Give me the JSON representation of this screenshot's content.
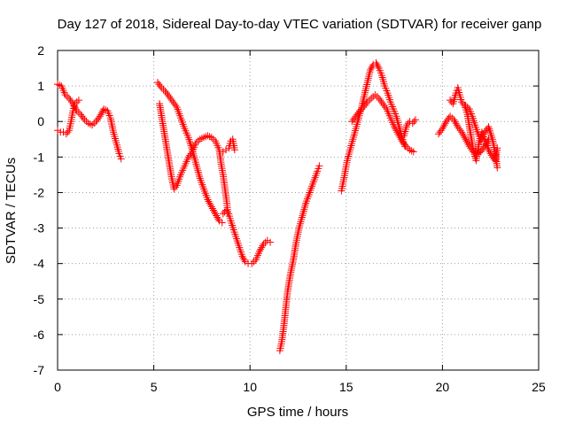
{
  "chart_data": {
    "type": "scatter",
    "title": "Day 127 of 2018, Sidereal Day-to-day VTEC variation (SDTVAR) for receiver ganp",
    "xlabel": "GPS time / hours",
    "ylabel": "SDTVAR / TECUs",
    "xlim": [
      0,
      25
    ],
    "ylim": [
      -7,
      2
    ],
    "xticks": [
      0,
      5,
      10,
      15,
      20,
      25
    ],
    "yticks": [
      -7,
      -6,
      -5,
      -4,
      -3,
      -2,
      -1,
      0,
      1,
      2
    ],
    "grid": true,
    "marker": "+",
    "color": "#ff0000",
    "segments": [
      [
        [
          0.0,
          1.05
        ],
        [
          0.2,
          1.0
        ],
        [
          0.4,
          0.75
        ],
        [
          0.6,
          0.65
        ],
        [
          0.8,
          0.5
        ],
        [
          1.0,
          0.3
        ],
        [
          1.2,
          0.2
        ],
        [
          1.4,
          0.05
        ],
        [
          1.6,
          -0.05
        ],
        [
          1.8,
          -0.1
        ],
        [
          2.0,
          0.0
        ],
        [
          2.2,
          0.15
        ],
        [
          2.4,
          0.35
        ],
        [
          2.6,
          0.3
        ],
        [
          2.75,
          0.1
        ],
        [
          2.9,
          -0.3
        ],
        [
          3.05,
          -0.6
        ],
        [
          3.2,
          -0.9
        ],
        [
          3.3,
          -1.05
        ]
      ],
      [
        [
          0.0,
          -0.25
        ],
        [
          0.15,
          -0.3
        ],
        [
          0.3,
          -0.3
        ],
        [
          0.45,
          -0.35
        ],
        [
          0.6,
          -0.25
        ],
        [
          0.7,
          0.0
        ],
        [
          0.8,
          0.3
        ],
        [
          0.9,
          0.5
        ],
        [
          1.0,
          0.55
        ],
        [
          1.1,
          0.6
        ]
      ],
      [
        [
          5.2,
          1.1
        ],
        [
          5.4,
          0.95
        ],
        [
          5.6,
          0.85
        ],
        [
          5.8,
          0.7
        ],
        [
          6.0,
          0.55
        ],
        [
          6.2,
          0.4
        ],
        [
          6.4,
          0.1
        ],
        [
          6.6,
          -0.2
        ],
        [
          6.8,
          -0.45
        ],
        [
          7.0,
          -0.8
        ],
        [
          7.2,
          -1.2
        ],
        [
          7.4,
          -1.6
        ],
        [
          7.6,
          -1.9
        ],
        [
          7.8,
          -2.2
        ],
        [
          8.0,
          -2.4
        ],
        [
          8.2,
          -2.6
        ],
        [
          8.4,
          -2.8
        ],
        [
          8.55,
          -2.85
        ]
      ],
      [
        [
          5.3,
          0.5
        ],
        [
          5.45,
          0.0
        ],
        [
          5.6,
          -0.5
        ],
        [
          5.75,
          -1.0
        ],
        [
          5.9,
          -1.5
        ],
        [
          6.05,
          -1.9
        ],
        [
          6.2,
          -1.8
        ],
        [
          6.4,
          -1.5
        ],
        [
          6.6,
          -1.25
        ],
        [
          6.8,
          -1.0
        ],
        [
          7.0,
          -0.85
        ],
        [
          7.2,
          -0.6
        ],
        [
          7.4,
          -0.5
        ],
        [
          7.6,
          -0.45
        ],
        [
          7.8,
          -0.4
        ],
        [
          8.0,
          -0.45
        ],
        [
          8.2,
          -0.55
        ],
        [
          8.4,
          -0.8
        ],
        [
          8.5,
          -1.2
        ],
        [
          8.6,
          -1.5
        ],
        [
          8.7,
          -1.9
        ],
        [
          8.8,
          -2.3
        ],
        [
          8.85,
          -2.6
        ]
      ],
      [
        [
          8.6,
          -2.6
        ],
        [
          8.75,
          -2.5
        ],
        [
          8.9,
          -2.6
        ],
        [
          9.0,
          -2.8
        ],
        [
          9.15,
          -3.05
        ],
        [
          9.3,
          -3.3
        ],
        [
          9.45,
          -3.55
        ],
        [
          9.6,
          -3.8
        ],
        [
          9.75,
          -3.95
        ],
        [
          9.9,
          -4.0
        ],
        [
          10.1,
          -4.0
        ],
        [
          10.3,
          -3.9
        ],
        [
          10.5,
          -3.65
        ],
        [
          10.7,
          -3.45
        ],
        [
          10.9,
          -3.35
        ],
        [
          11.05,
          -3.4
        ]
      ],
      [
        [
          8.6,
          -0.85
        ],
        [
          8.75,
          -0.8
        ],
        [
          8.9,
          -0.75
        ],
        [
          9.0,
          -0.55
        ],
        [
          9.1,
          -0.5
        ],
        [
          9.2,
          -0.8
        ]
      ],
      [
        [
          11.55,
          -6.45
        ],
        [
          11.65,
          -6.2
        ],
        [
          11.75,
          -5.8
        ],
        [
          11.85,
          -5.3
        ],
        [
          11.95,
          -4.8
        ],
        [
          12.1,
          -4.3
        ],
        [
          12.25,
          -3.9
        ],
        [
          12.4,
          -3.4
        ],
        [
          12.55,
          -3.0
        ],
        [
          12.7,
          -2.7
        ],
        [
          12.9,
          -2.3
        ],
        [
          13.1,
          -2.0
        ],
        [
          13.3,
          -1.7
        ],
        [
          13.5,
          -1.4
        ],
        [
          13.6,
          -1.25
        ]
      ],
      [
        [
          14.75,
          -1.95
        ],
        [
          14.85,
          -1.7
        ],
        [
          14.95,
          -1.4
        ],
        [
          15.05,
          -1.1
        ],
        [
          15.2,
          -0.8
        ],
        [
          15.35,
          -0.5
        ],
        [
          15.5,
          -0.2
        ],
        [
          15.65,
          0.1
        ],
        [
          15.8,
          0.4
        ],
        [
          15.95,
          0.75
        ],
        [
          16.1,
          1.1
        ],
        [
          16.25,
          1.45
        ],
        [
          16.4,
          1.6
        ],
        [
          16.55,
          1.65
        ],
        [
          16.7,
          1.5
        ],
        [
          16.85,
          1.3
        ],
        [
          17.0,
          1.0
        ],
        [
          17.15,
          0.8
        ],
        [
          17.3,
          0.55
        ],
        [
          17.45,
          0.35
        ],
        [
          17.6,
          0.15
        ],
        [
          17.75,
          -0.15
        ],
        [
          17.9,
          -0.45
        ],
        [
          18.05,
          -0.7
        ]
      ],
      [
        [
          15.3,
          0.0
        ],
        [
          15.5,
          0.15
        ],
        [
          15.7,
          0.3
        ],
        [
          15.9,
          0.4
        ],
        [
          16.1,
          0.55
        ],
        [
          16.3,
          0.65
        ],
        [
          16.5,
          0.75
        ],
        [
          16.7,
          0.65
        ],
        [
          16.9,
          0.5
        ],
        [
          17.1,
          0.35
        ],
        [
          17.3,
          0.1
        ],
        [
          17.5,
          -0.15
        ],
        [
          17.7,
          -0.35
        ],
        [
          17.9,
          -0.55
        ],
        [
          18.1,
          -0.7
        ],
        [
          18.3,
          -0.8
        ],
        [
          18.5,
          -0.85
        ]
      ],
      [
        [
          18.0,
          -0.4
        ],
        [
          18.15,
          -0.1
        ],
        [
          18.3,
          0.0
        ],
        [
          18.45,
          -0.05
        ],
        [
          18.6,
          0.05
        ]
      ],
      [
        [
          19.8,
          -0.35
        ],
        [
          20.0,
          -0.2
        ],
        [
          20.2,
          0.0
        ],
        [
          20.4,
          0.15
        ],
        [
          20.6,
          0.05
        ],
        [
          20.8,
          -0.15
        ],
        [
          21.0,
          -0.3
        ],
        [
          21.2,
          -0.5
        ],
        [
          21.4,
          -0.7
        ],
        [
          21.6,
          -0.85
        ],
        [
          21.8,
          -0.9
        ],
        [
          22.0,
          -0.85
        ],
        [
          22.2,
          -0.7
        ],
        [
          22.4,
          -0.5
        ]
      ],
      [
        [
          20.4,
          0.6
        ],
        [
          20.55,
          0.5
        ],
        [
          20.7,
          0.8
        ],
        [
          20.8,
          0.95
        ],
        [
          20.9,
          0.75
        ],
        [
          21.0,
          0.55
        ],
        [
          21.15,
          0.45
        ],
        [
          21.3,
          0.2
        ],
        [
          21.45,
          -0.3
        ],
        [
          21.6,
          -0.8
        ],
        [
          21.75,
          -1.1
        ],
        [
          21.9,
          -0.6
        ],
        [
          22.05,
          -0.3
        ],
        [
          22.2,
          -0.5
        ],
        [
          22.4,
          -0.8
        ],
        [
          22.6,
          -1.0
        ],
        [
          22.75,
          -1.1
        ],
        [
          22.85,
          -0.75
        ]
      ],
      [
        [
          21.2,
          0.45
        ],
        [
          21.4,
          0.35
        ],
        [
          21.55,
          0.15
        ],
        [
          21.7,
          -0.1
        ],
        [
          21.85,
          -0.35
        ],
        [
          22.0,
          -0.55
        ],
        [
          22.2,
          -0.3
        ],
        [
          22.4,
          -0.15
        ],
        [
          22.6,
          -0.5
        ],
        [
          22.75,
          -0.9
        ],
        [
          22.85,
          -1.3
        ]
      ]
    ]
  }
}
